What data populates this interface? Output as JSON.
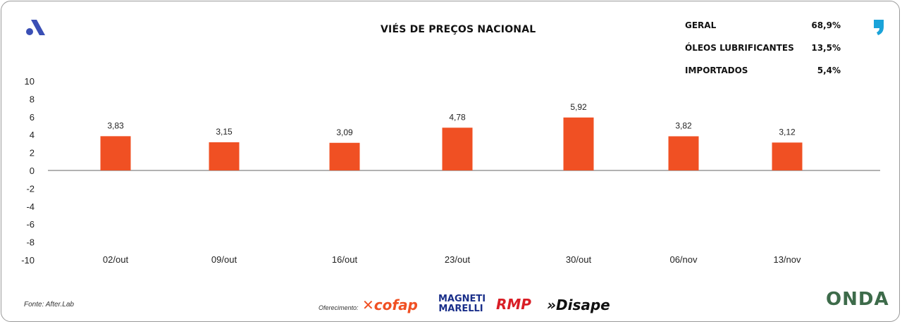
{
  "chart_data": {
    "type": "bar",
    "title": "VIÉS DE PREÇOS NACIONAL",
    "categories": [
      "02/out",
      "09/out",
      "16/out",
      "23/out",
      "30/out",
      "06/nov",
      "13/nov"
    ],
    "values": [
      3.83,
      3.15,
      3.09,
      4.78,
      5.92,
      3.82,
      3.12
    ],
    "value_labels": [
      "3,83",
      "3,15",
      "3,09",
      "4,78",
      "5,92",
      "3,82",
      "3,12"
    ],
    "ylim": [
      -10,
      10
    ],
    "yticks": [
      10,
      8,
      6,
      4,
      2,
      0,
      -2,
      -4,
      -6,
      -8,
      -10
    ],
    "bar_color": "#f05023",
    "grid": false
  },
  "legend_table": [
    {
      "label": "GERAL",
      "value": "68,9%"
    },
    {
      "label": "ÓLEOS LUBRIFICANTES",
      "value": "13,5%"
    },
    {
      "label": "IMPORTADOS",
      "value": "5,4%"
    }
  ],
  "footer": {
    "source": "Fonte: After.Lab",
    "sponsor_label": "Oferecimento:",
    "sponsors": [
      "cofap",
      "MAGNETI MARELLI",
      "RMP",
      "»Disape"
    ],
    "brand": "ONDA"
  },
  "icons": {
    "left_logo": "a-logo-icon",
    "right_logo": "comma-logo-icon"
  },
  "colors": {
    "accent_blue": "#3a4fb5",
    "right_logo_blue": "#1aa3d9",
    "bar": "#f05023"
  }
}
